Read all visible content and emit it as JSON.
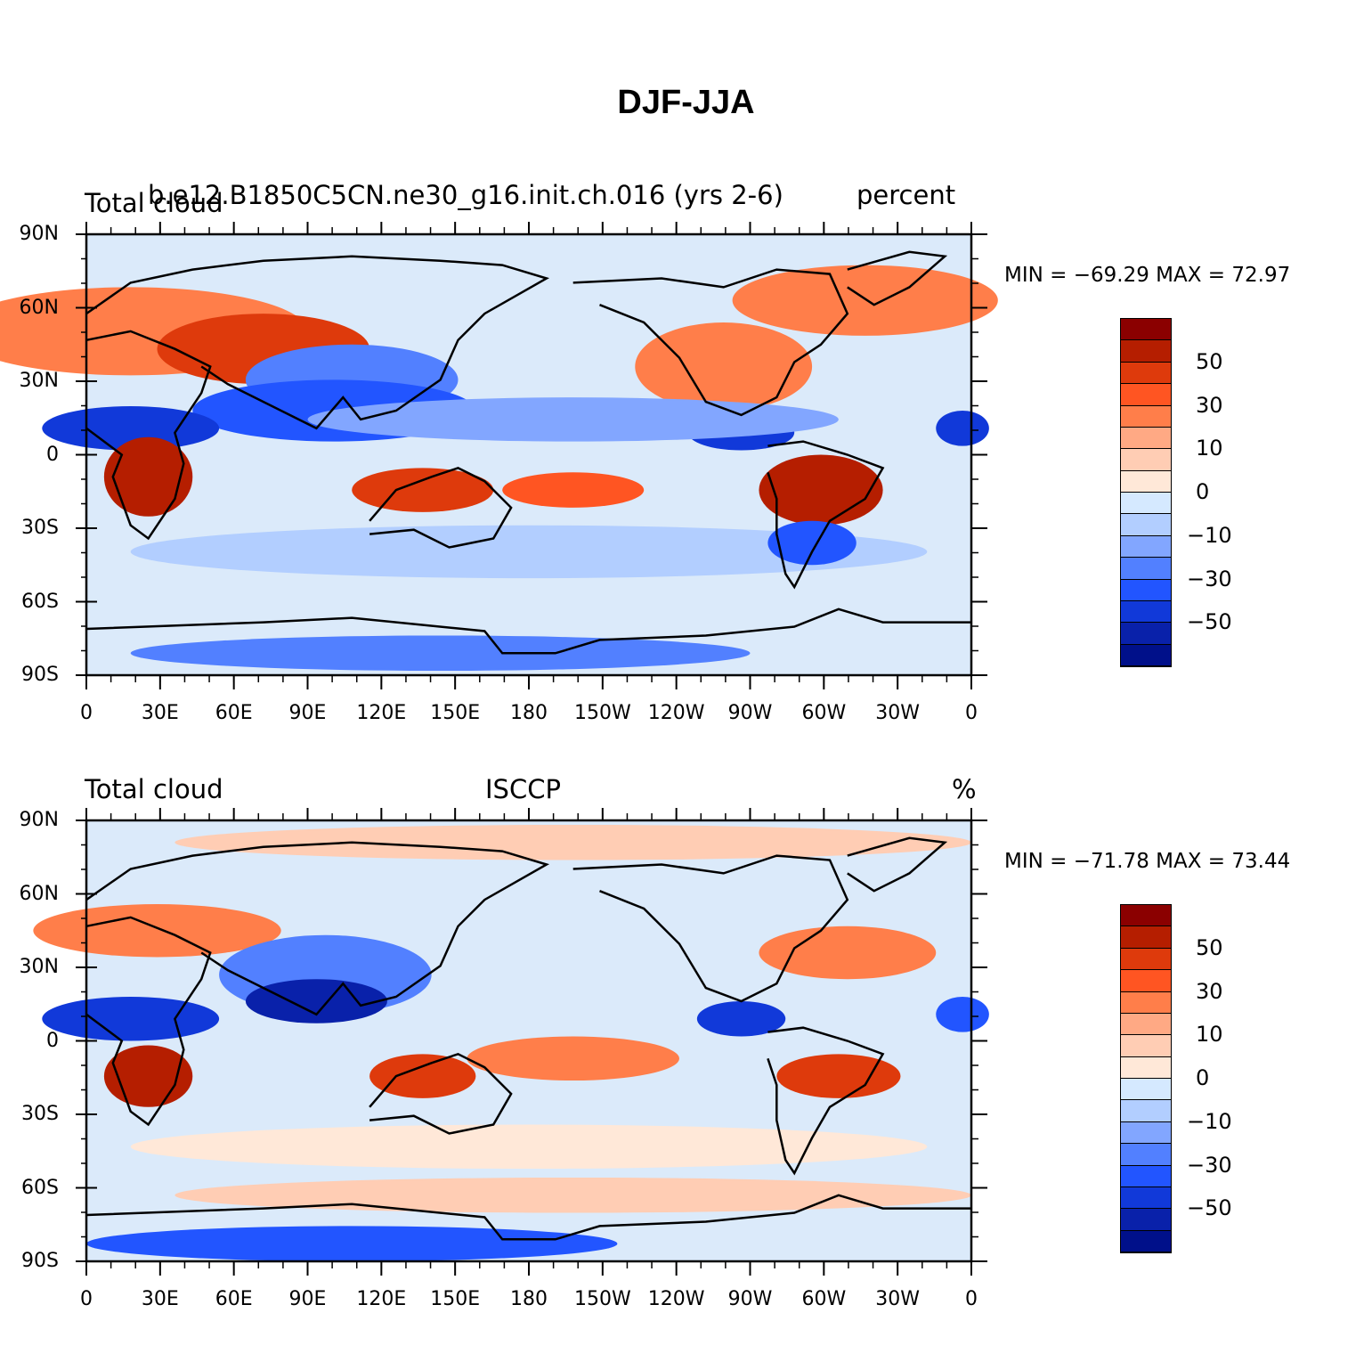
{
  "title": "DJF-JJA",
  "panels": [
    {
      "left_label": "Total cloud",
      "center_label": "b.e12.B1850C5CN.ne30_g16.init.ch.016 (yrs 2-6)",
      "right_label": "percent",
      "minmax": "MIN = −69.29 MAX =   72.97"
    },
    {
      "left_label": "Total cloud",
      "center_label": "ISCCP",
      "right_label": "%",
      "minmax": "MIN = −71.78 MAX =   73.44"
    }
  ],
  "lat_ticks": [
    "90N",
    "60N",
    "30N",
    "0",
    "30S",
    "60S",
    "90S"
  ],
  "lon_ticks": [
    "0",
    "30E",
    "60E",
    "90E",
    "120E",
    "150E",
    "180",
    "150W",
    "120W",
    "90W",
    "60W",
    "30W",
    "0"
  ],
  "colorbar": {
    "colors": [
      "#8b0000",
      "#b51e00",
      "#de3a0c",
      "#ff5522",
      "#ff7e4a",
      "#ffa984",
      "#ffcdb4",
      "#ffe8d8",
      "#d5e9ff",
      "#b2ceff",
      "#82a6ff",
      "#5280ff",
      "#2255ff",
      "#1139d9",
      "#0921aa",
      "#00108a"
    ],
    "labels": [
      "50",
      "30",
      "10",
      "0",
      "−10",
      "−30",
      "−50"
    ]
  },
  "map_colors": {
    "ocean": "#dbeafa",
    "coast": "#000000"
  }
}
